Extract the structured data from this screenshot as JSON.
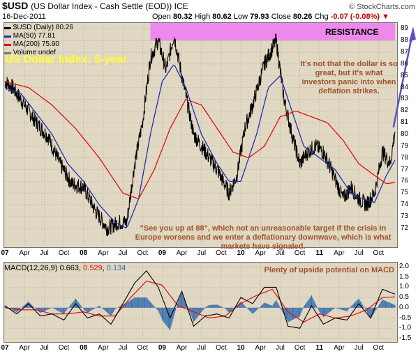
{
  "header": {
    "symbol": "$USD",
    "subtitle": "(US Dollar Index - Cash Settle (EOD)) ICE",
    "date": "16-Dec-2011",
    "brand": "© StockCharts.com",
    "open_label": "Open",
    "open": "80.32",
    "high_label": "High",
    "high": "80.62",
    "low_label": "Low",
    "low": "79.93",
    "close_label": "Close",
    "close": "80.26",
    "chg_label": "Chg",
    "chg": "-0.07 (-0.08%)",
    "chg_arrow": "▼"
  },
  "legend": {
    "price": "$USD (Daily) 80.26",
    "ma50": "MA(50) 77.81",
    "ma200": "MA(200) 75.90",
    "volume": "Volume undef"
  },
  "overlay": {
    "title": "US Dollar Index: 5-year",
    "resistance": "RESISTANCE",
    "comment1": "It's not that the dollar is so great, but it's what investors panic into when deflation strikes.",
    "comment2": "\"See you up at 88\", which not an unreasonable target if the crisis in Europe worsens and we enter a deflationary downwave, which is what markets have signaled.",
    "macd_comment": "Plenty of upside potential on MACD"
  },
  "macd_legend": {
    "label": "MACD(12,26,9)",
    "macd": "0.663",
    "signal": "0.529",
    "hist": "0.134"
  },
  "colors": {
    "panel_bg": "#e0d8c2",
    "price": "#000000",
    "ma50": "#1f2fb0",
    "ma200": "#e01010",
    "macd_signal": "#e01010",
    "histogram": "#3a6fb0",
    "resistance_band": "#ee88ee",
    "arrow": "#5a4fd0",
    "title_yellow": "#ffff33",
    "annotation": "#a0522d"
  },
  "chart_data": [
    {
      "type": "line",
      "title": "$USD (Daily)",
      "ylim": [
        70.5,
        89.5
      ],
      "yticks": [
        72,
        73,
        74,
        75,
        76,
        77,
        78,
        79,
        80,
        81,
        82,
        83,
        84,
        85,
        86,
        87,
        88,
        89
      ],
      "x_ticks": [
        "07",
        "Apr",
        "Jul",
        "Oct",
        "08",
        "Apr",
        "Jul",
        "Oct",
        "09",
        "Apr",
        "Jul",
        "Oct",
        "10",
        "Apr",
        "Jul",
        "Oct",
        "11",
        "Apr",
        "Jul",
        "Oct"
      ],
      "resistance_band": [
        88,
        89.5
      ],
      "grid": true,
      "series": [
        {
          "name": "$USD",
          "x": [
            2007.0,
            2007.1,
            2007.25,
            2007.4,
            2007.55,
            2007.7,
            2007.85,
            2008.0,
            2008.15,
            2008.3,
            2008.45,
            2008.55,
            2008.65,
            2008.75,
            2008.85,
            2008.95,
            2009.05,
            2009.15,
            2009.25,
            2009.4,
            2009.55,
            2009.7,
            2009.85,
            2009.95,
            2010.05,
            2010.15,
            2010.3,
            2010.45,
            2010.55,
            2010.65,
            2010.75,
            2010.85,
            2010.95,
            2011.05,
            2011.15,
            2011.3,
            2011.4,
            2011.5,
            2011.6,
            2011.7,
            2011.8,
            2011.9,
            2011.96
          ],
          "values": [
            84.5,
            84.0,
            82.5,
            81.0,
            79.8,
            77.5,
            75.8,
            75.5,
            73.5,
            72.0,
            72.5,
            72.5,
            77.5,
            81.0,
            86.5,
            88.0,
            85.5,
            88.5,
            85.0,
            80.0,
            78.5,
            77.0,
            75.0,
            76.5,
            80.5,
            82.5,
            86.0,
            88.0,
            83.0,
            80.0,
            77.5,
            78.5,
            79.0,
            78.5,
            77.0,
            74.5,
            75.5,
            74.5,
            74.0,
            75.0,
            78.5,
            77.5,
            80.3
          ]
        },
        {
          "name": "MA(50)",
          "x": [
            2007.0,
            2007.2,
            2007.4,
            2007.6,
            2007.8,
            2008.0,
            2008.2,
            2008.4,
            2008.55,
            2008.7,
            2008.85,
            2009.0,
            2009.15,
            2009.3,
            2009.5,
            2009.7,
            2009.85,
            2010.0,
            2010.2,
            2010.35,
            2010.5,
            2010.65,
            2010.8,
            2011.0,
            2011.2,
            2011.4,
            2011.55,
            2011.7,
            2011.85,
            2011.96
          ],
          "values": [
            84.0,
            83.5,
            81.8,
            80.0,
            77.5,
            76.0,
            74.0,
            72.5,
            72.0,
            74.5,
            80.0,
            84.5,
            86.0,
            84.0,
            80.0,
            77.5,
            76.0,
            76.0,
            80.0,
            84.0,
            85.0,
            82.0,
            79.0,
            78.0,
            77.0,
            75.0,
            74.5,
            74.2,
            76.5,
            77.8
          ]
        },
        {
          "name": "MA(200)",
          "x": [
            2007.0,
            2007.3,
            2007.6,
            2007.9,
            2008.2,
            2008.5,
            2008.7,
            2008.9,
            2009.1,
            2009.3,
            2009.5,
            2009.7,
            2009.9,
            2010.1,
            2010.3,
            2010.5,
            2010.7,
            2010.9,
            2011.1,
            2011.3,
            2011.5,
            2011.7,
            2011.85,
            2011.96
          ],
          "values": [
            84.5,
            84.0,
            82.5,
            80.5,
            78.0,
            75.0,
            74.5,
            77.0,
            80.5,
            83.0,
            82.5,
            80.5,
            78.5,
            78.0,
            79.0,
            81.5,
            82.0,
            81.5,
            81.0,
            79.5,
            77.5,
            76.5,
            75.8,
            75.9
          ]
        }
      ]
    },
    {
      "type": "line",
      "title": "MACD(12,26,9)",
      "ylim": [
        -1.6,
        2.2
      ],
      "yticks": [
        -1.5,
        -1.0,
        -0.5,
        0.0,
        0.5,
        1.0,
        1.5,
        2.0
      ],
      "x_ticks": [
        "07",
        "Apr",
        "Jul",
        "Oct",
        "08",
        "Apr",
        "Jul",
        "Oct",
        "09",
        "Apr",
        "Jul",
        "Oct",
        "10",
        "Apr",
        "Jul",
        "Oct",
        "11",
        "Apr",
        "Jul",
        "Oct"
      ],
      "grid": true,
      "series": [
        {
          "name": "MACD",
          "x": [
            2007.0,
            2007.15,
            2007.3,
            2007.45,
            2007.6,
            2007.75,
            2007.9,
            2008.05,
            2008.2,
            2008.35,
            2008.5,
            2008.65,
            2008.8,
            2008.95,
            2009.1,
            2009.25,
            2009.4,
            2009.55,
            2009.7,
            2009.85,
            2010.0,
            2010.15,
            2010.3,
            2010.45,
            2010.6,
            2010.75,
            2010.9,
            2011.05,
            2011.2,
            2011.35,
            2011.5,
            2011.65,
            2011.8,
            2011.96
          ],
          "values": [
            0.1,
            -0.3,
            0.2,
            -0.4,
            -0.3,
            -0.6,
            0.2,
            -0.5,
            -0.3,
            -0.8,
            0.2,
            1.2,
            1.8,
            1.0,
            -0.5,
            0.8,
            -0.9,
            -0.4,
            -0.3,
            -0.5,
            0.5,
            0.2,
            1.0,
            1.0,
            -0.9,
            -1.0,
            0.1,
            -0.8,
            -0.5,
            -0.6,
            0.2,
            -0.5,
            0.9,
            0.663
          ]
        },
        {
          "name": "Signal",
          "x": [
            2007.0,
            2007.2,
            2007.4,
            2007.6,
            2007.8,
            2008.0,
            2008.2,
            2008.4,
            2008.6,
            2008.8,
            2009.0,
            2009.2,
            2009.4,
            2009.6,
            2009.8,
            2010.0,
            2010.2,
            2010.4,
            2010.6,
            2010.8,
            2011.0,
            2011.2,
            2011.4,
            2011.6,
            2011.8,
            2011.96
          ],
          "values": [
            0.0,
            -0.1,
            -0.1,
            -0.3,
            -0.3,
            -0.2,
            -0.4,
            -0.4,
            0.5,
            1.3,
            1.1,
            0.1,
            -0.2,
            -0.5,
            -0.4,
            0.2,
            0.6,
            0.9,
            -0.2,
            -0.7,
            -0.3,
            -0.5,
            -0.4,
            -0.1,
            0.5,
            0.529
          ]
        }
      ]
    }
  ]
}
